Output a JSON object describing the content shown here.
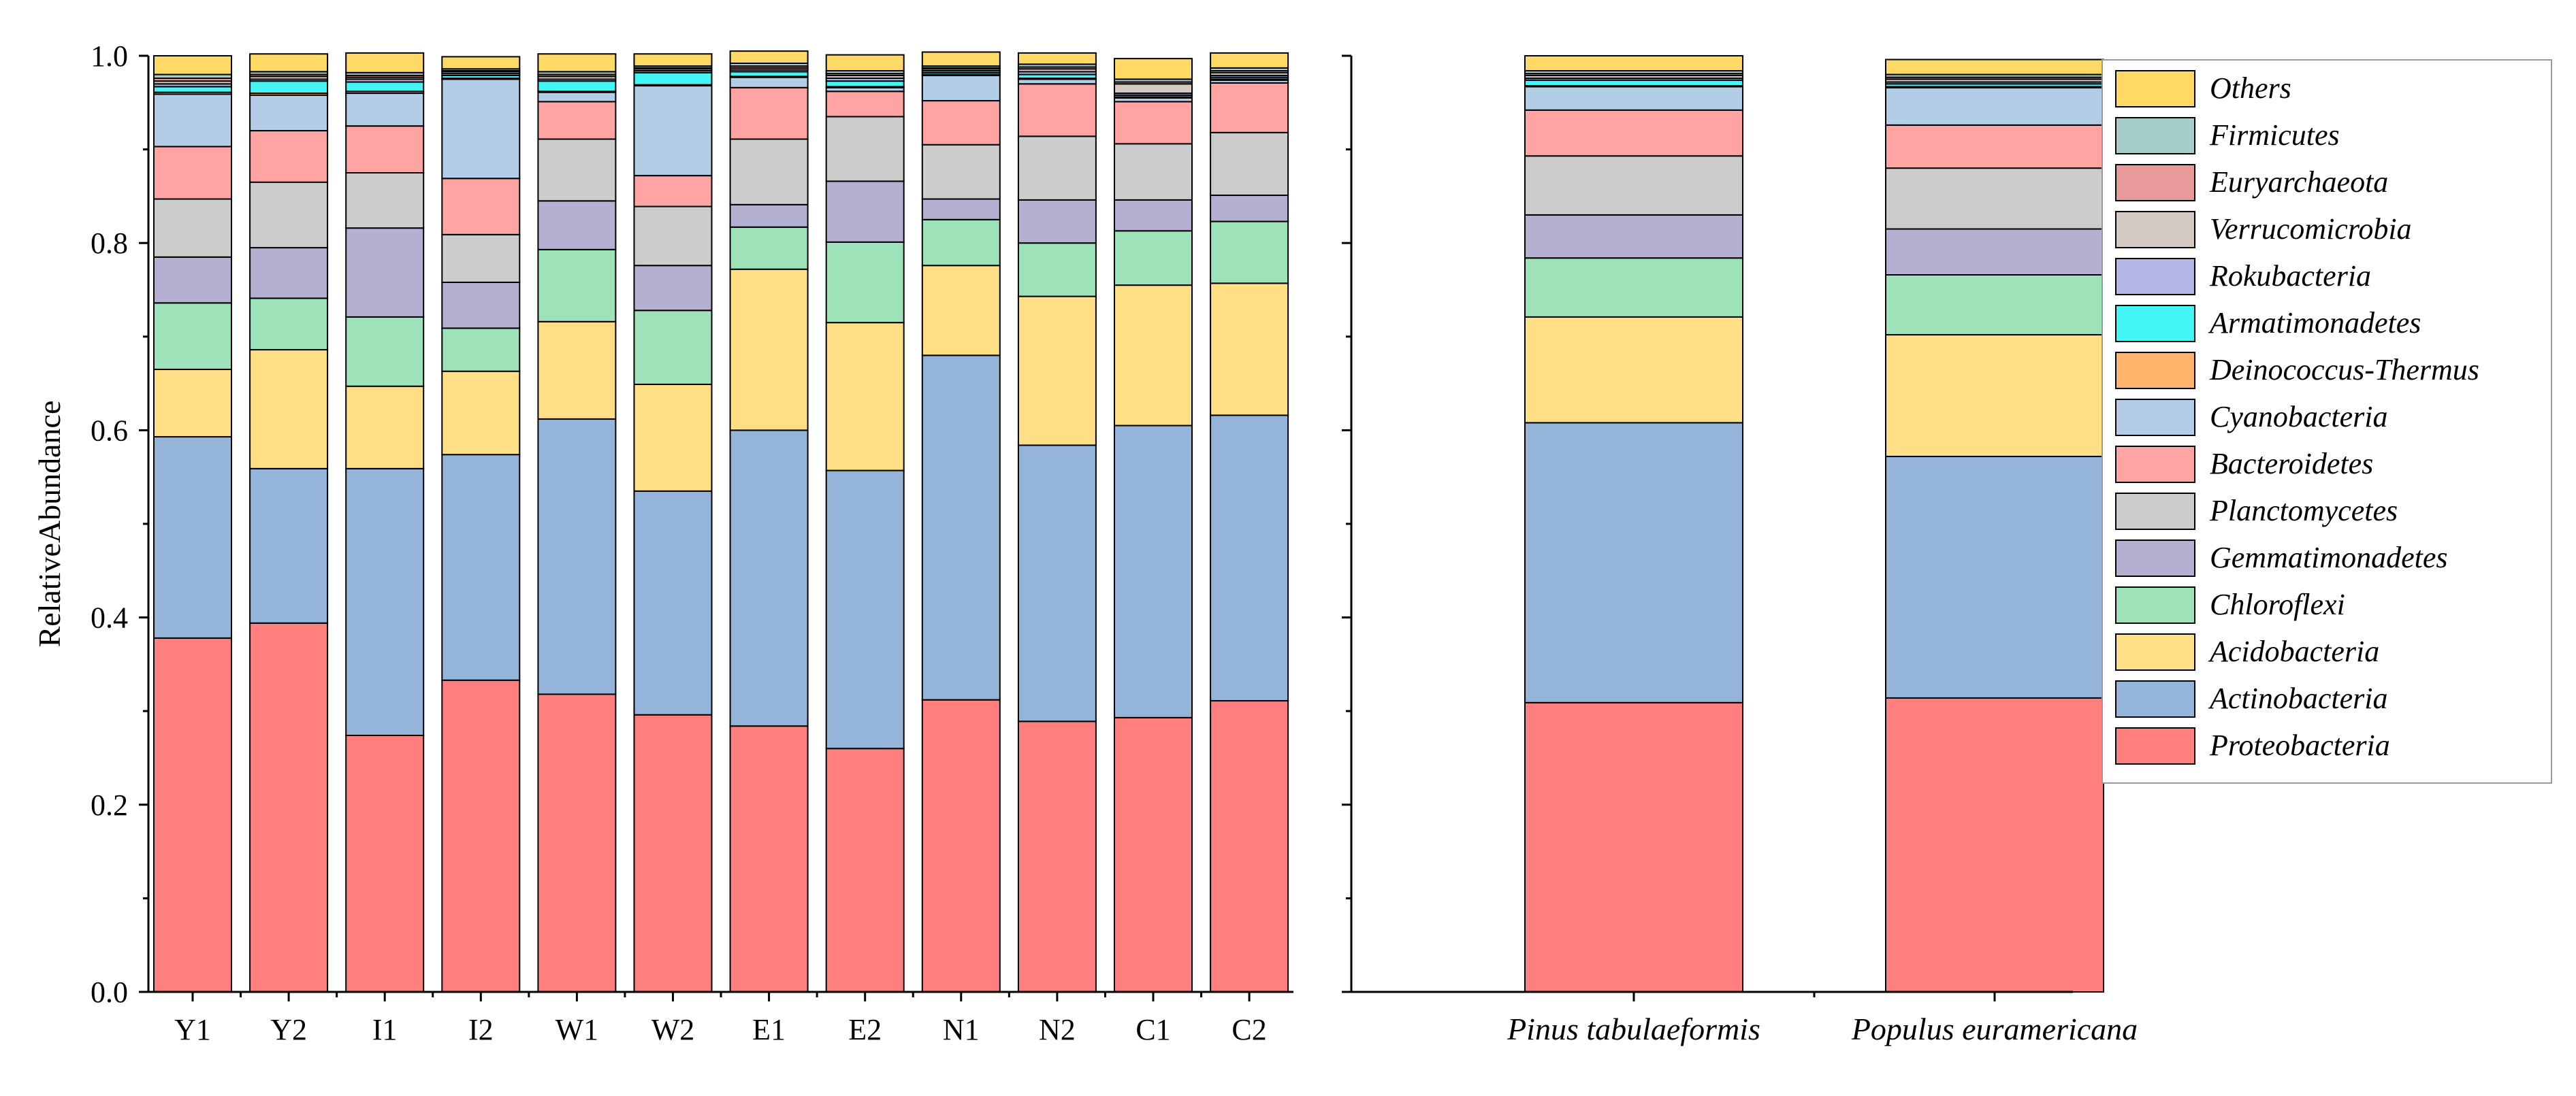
{
  "chart_data": {
    "type": "bar",
    "stacked": true,
    "ylabel": "RelativeAbundance",
    "ylim": [
      0,
      1.0
    ],
    "yticks": [
      "0.0",
      "0.2",
      "0.4",
      "0.6",
      "0.8",
      "1.0"
    ],
    "panels": [
      {
        "name": "samples",
        "categories": [
          "Y1",
          "Y2",
          "I1",
          "I2",
          "W1",
          "W2",
          "E1",
          "E2",
          "N1",
          "N2",
          "C1",
          "C2"
        ]
      },
      {
        "name": "species",
        "categories": [
          "Pinus tabulaeformis",
          "Populus euramericana"
        ]
      }
    ],
    "legend_position": "right",
    "series": [
      {
        "name": "Proteobacteria",
        "color": "#ff7f7f",
        "values": [
          0.378,
          0.394,
          0.274,
          0.333,
          0.318,
          0.296,
          0.284,
          0.26,
          0.312,
          0.289,
          0.293,
          0.311,
          0.309,
          0.314
        ]
      },
      {
        "name": "Actinobacteria",
        "color": "#94b4d9",
        "values": [
          0.215,
          0.165,
          0.285,
          0.241,
          0.294,
          0.239,
          0.316,
          0.297,
          0.368,
          0.295,
          0.312,
          0.305,
          0.299,
          0.258
        ]
      },
      {
        "name": "Acidobacteria",
        "color": "#ffdf86",
        "values": [
          0.072,
          0.127,
          0.088,
          0.089,
          0.104,
          0.114,
          0.172,
          0.158,
          0.096,
          0.159,
          0.15,
          0.141,
          0.113,
          0.13
        ]
      },
      {
        "name": "Chloroflexi",
        "color": "#9de2b8",
        "values": [
          0.071,
          0.055,
          0.074,
          0.046,
          0.077,
          0.079,
          0.045,
          0.086,
          0.049,
          0.057,
          0.058,
          0.066,
          0.063,
          0.064
        ]
      },
      {
        "name": "Gemmatimonadetes",
        "color": "#b3b0d1",
        "values": [
          0.049,
          0.054,
          0.095,
          0.049,
          0.052,
          0.048,
          0.024,
          0.065,
          0.022,
          0.046,
          0.033,
          0.028,
          0.046,
          0.049
        ]
      },
      {
        "name": "Planctomycetes",
        "color": "#cccccc",
        "values": [
          0.062,
          0.07,
          0.059,
          0.051,
          0.066,
          0.063,
          0.07,
          0.069,
          0.058,
          0.068,
          0.06,
          0.067,
          0.063,
          0.065
        ]
      },
      {
        "name": "Bacteroidetes",
        "color": "#ffa3a3",
        "values": [
          0.056,
          0.055,
          0.05,
          0.06,
          0.04,
          0.033,
          0.055,
          0.027,
          0.047,
          0.056,
          0.045,
          0.053,
          0.049,
          0.046
        ]
      },
      {
        "name": "Cyanobacteria",
        "color": "#b4cde6",
        "values": [
          0.056,
          0.038,
          0.035,
          0.106,
          0.01,
          0.096,
          0.011,
          0.004,
          0.027,
          0.005,
          0.004,
          0.003,
          0.025,
          0.04
        ]
      },
      {
        "name": "Deinococcus-Thermus",
        "color": "#ffb36b",
        "values": [
          0.002,
          0.002,
          0.002,
          0.001,
          0.001,
          0.001,
          0.001,
          0.001,
          0.001,
          0.001,
          0.001,
          0.001,
          0.001,
          0.001
        ]
      },
      {
        "name": "Armatimonadetes",
        "color": "#44f5f5",
        "values": [
          0.006,
          0.013,
          0.01,
          0.003,
          0.011,
          0.013,
          0.005,
          0.006,
          0.002,
          0.004,
          0.002,
          0.002,
          0.006,
          0.003
        ]
      },
      {
        "name": "Rokubacteria",
        "color": "#b3b6e6",
        "values": [
          0.003,
          0.002,
          0.003,
          0.002,
          0.002,
          0.002,
          0.002,
          0.003,
          0.002,
          0.003,
          0.002,
          0.002,
          0.002,
          0.002
        ]
      },
      {
        "name": "Verrucomicrobia",
        "color": "#d4c9c3",
        "values": [
          0.003,
          0.003,
          0.002,
          0.002,
          0.003,
          0.002,
          0.002,
          0.003,
          0.002,
          0.003,
          0.01,
          0.003,
          0.003,
          0.003
        ]
      },
      {
        "name": "Euryarchaeota",
        "color": "#e89a9a",
        "values": [
          0.003,
          0.002,
          0.002,
          0.001,
          0.002,
          0.001,
          0.002,
          0.002,
          0.001,
          0.002,
          0.002,
          0.002,
          0.002,
          0.002
        ]
      },
      {
        "name": "Firmicutes",
        "color": "#a6cccc",
        "values": [
          0.004,
          0.003,
          0.003,
          0.002,
          0.003,
          0.002,
          0.003,
          0.003,
          0.002,
          0.003,
          0.003,
          0.003,
          0.003,
          0.003
        ]
      },
      {
        "name": "Others",
        "color": "#ffd966",
        "values": [
          0.02,
          0.019,
          0.021,
          0.013,
          0.019,
          0.013,
          0.013,
          0.017,
          0.015,
          0.012,
          0.022,
          0.016,
          0.016,
          0.016
        ]
      }
    ],
    "legend_order": [
      "Others",
      "Firmicutes",
      "Euryarchaeota",
      "Verrucomicrobia",
      "Rokubacteria",
      "Armatimonadetes",
      "Deinococcus-Thermus",
      "Cyanobacteria",
      "Bacteroidetes",
      "Planctomycetes",
      "Gemmatimonadetes",
      "Chloroflexi",
      "Acidobacteria",
      "Actinobacteria",
      "Proteobacteria"
    ]
  }
}
